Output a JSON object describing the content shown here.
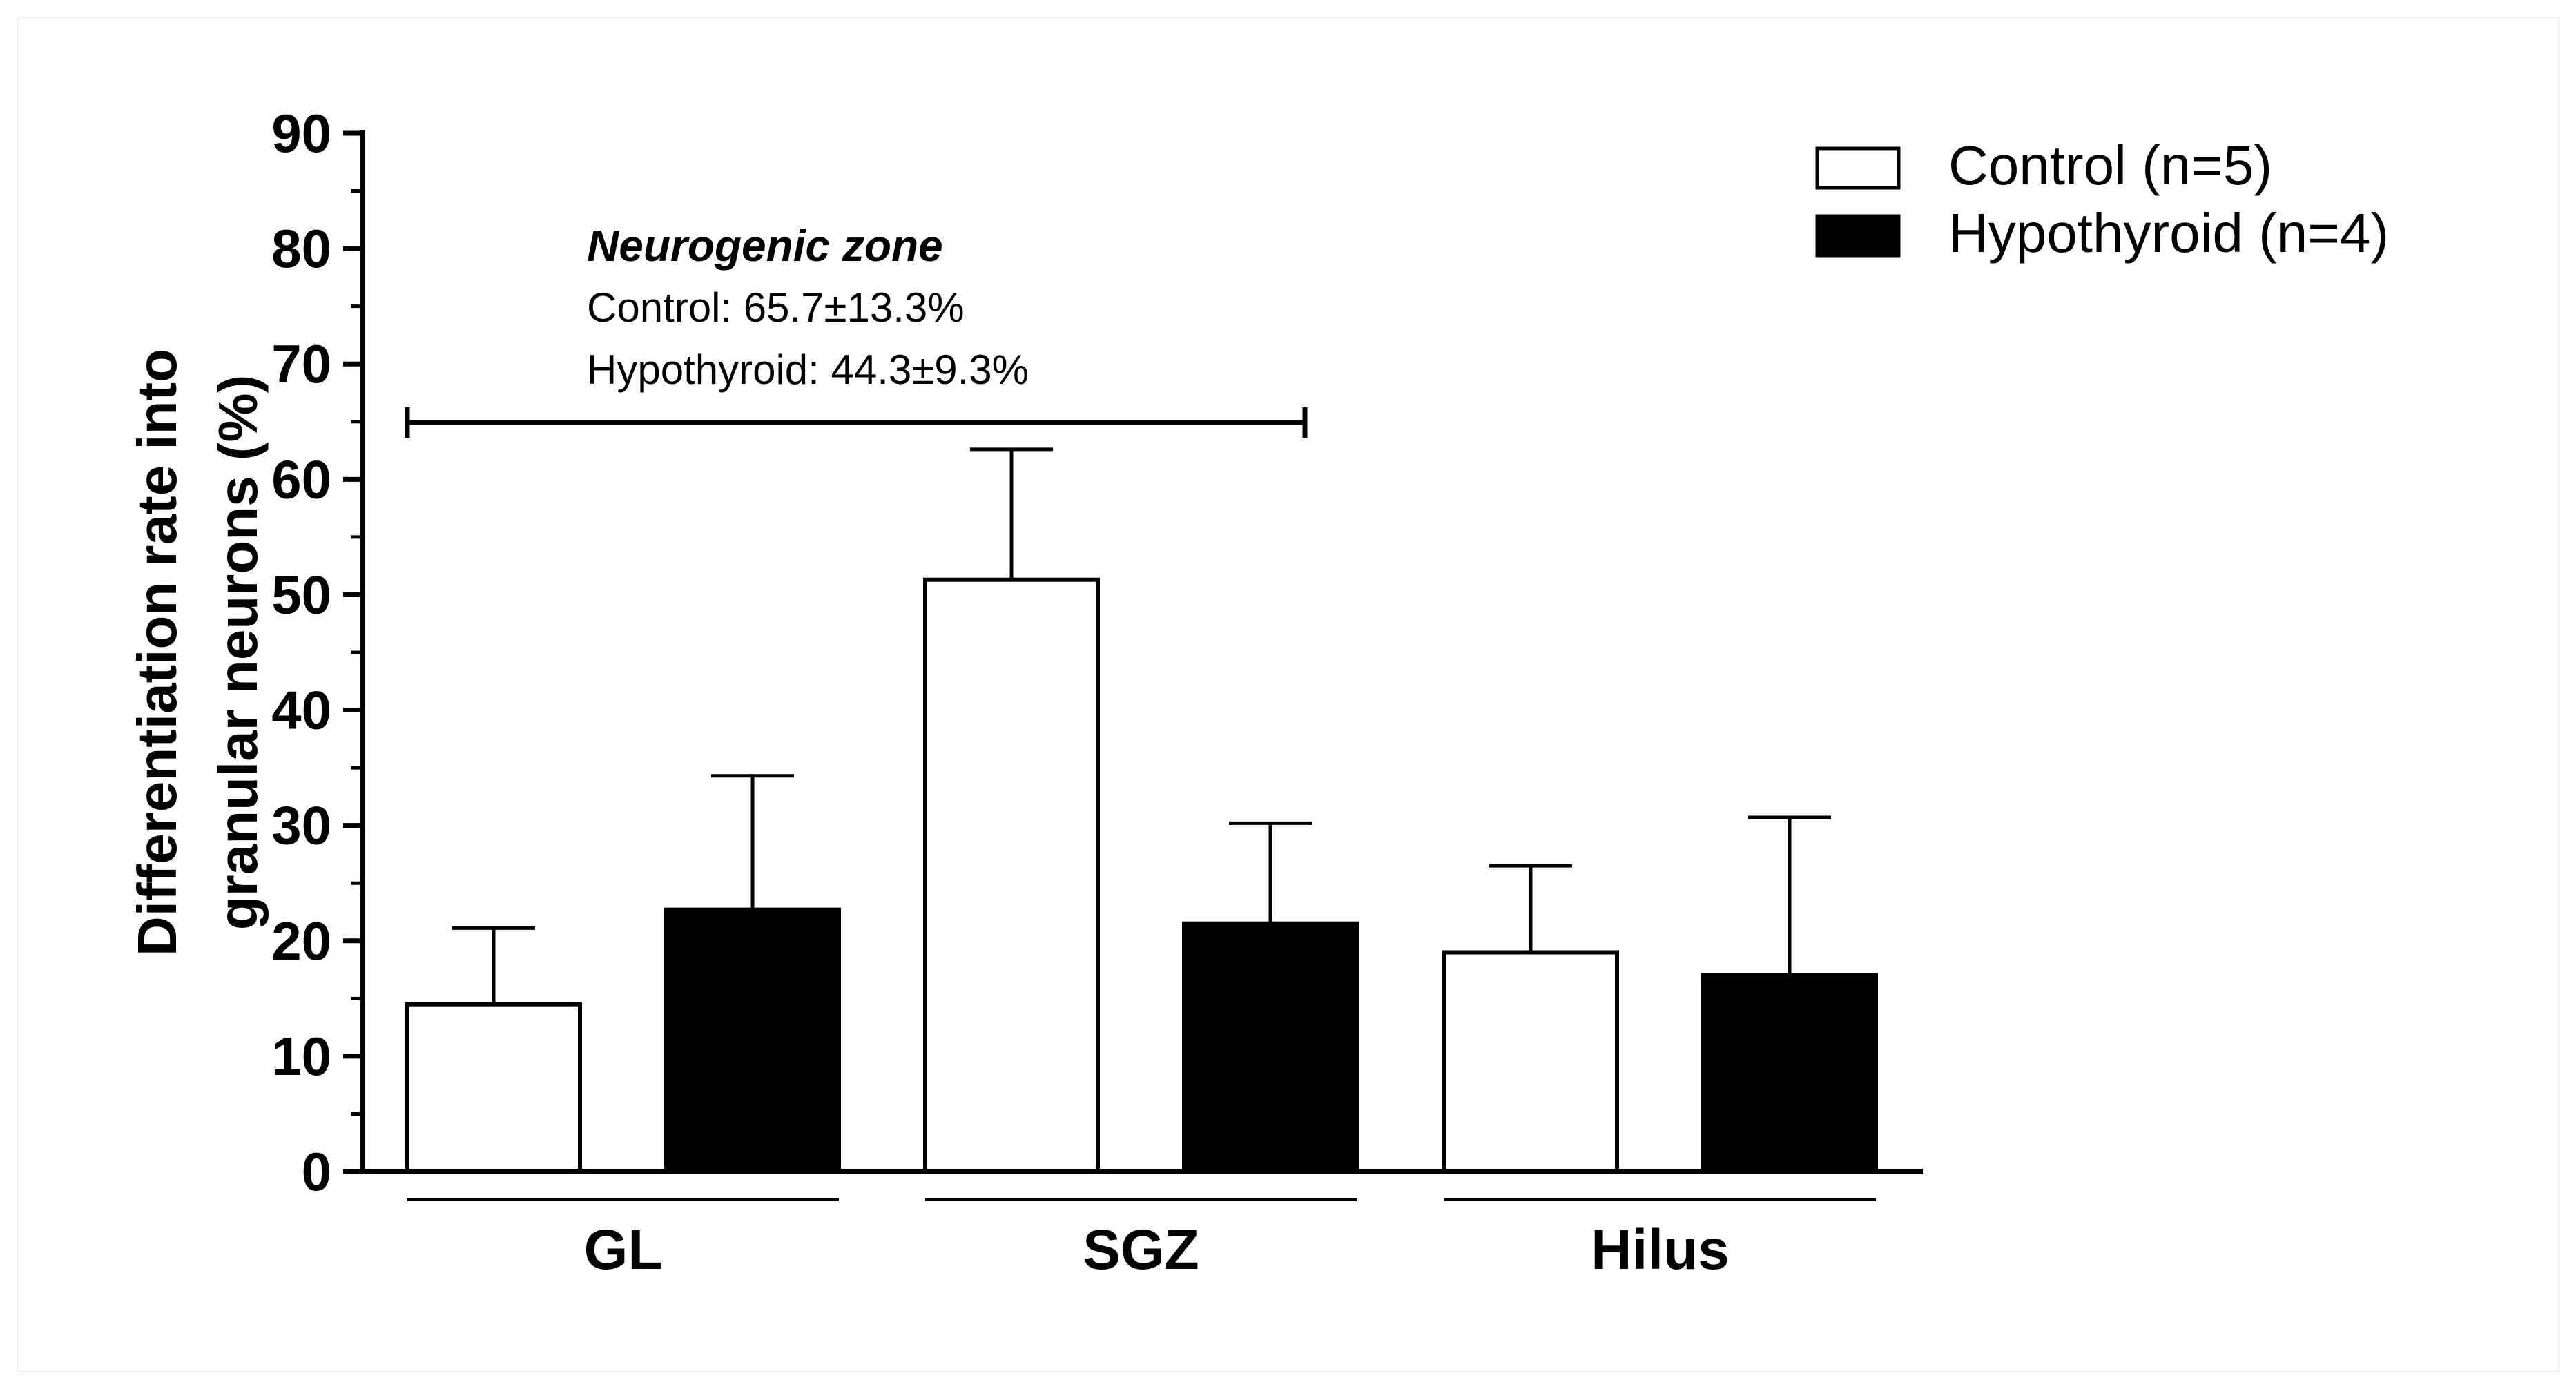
{
  "chart_data": {
    "type": "bar",
    "ylabel_line1": "Differentiation rate into",
    "ylabel_line2": "granular neurons (%)",
    "ylim": [
      0,
      90
    ],
    "yticks": [
      0,
      10,
      20,
      30,
      40,
      50,
      60,
      70,
      80,
      90
    ],
    "categories": [
      "GL",
      "SGZ",
      "Hilus"
    ],
    "series": [
      {
        "name": "Control (n=5)",
        "values": [
          14.5,
          51.3,
          19.0
        ],
        "errors": [
          6.6,
          11.3,
          7.5
        ],
        "fill": "#ffffff"
      },
      {
        "name": "Hypothyroid (n=4)",
        "values": [
          22.7,
          21.5,
          17.0
        ],
        "errors": [
          11.6,
          8.7,
          13.7
        ],
        "fill": "#000000"
      }
    ],
    "legend_position": "top-right",
    "annotation": {
      "title": "Neurogenic zone",
      "line1": "Control: 65.7±13.3%",
      "line2": "Hypothyroid: 44.3±9.3%",
      "span_categories": [
        "GL",
        "SGZ"
      ]
    }
  }
}
